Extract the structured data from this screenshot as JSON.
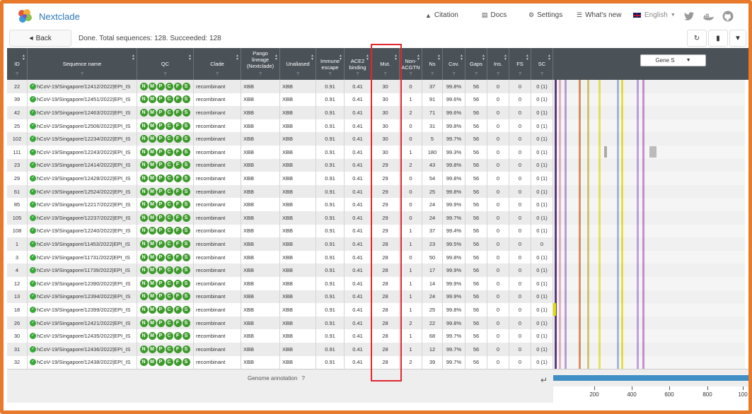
{
  "nav": {
    "brand": "Nextclade",
    "citation": "Citation",
    "docs": "Docs",
    "settings": "Settings",
    "whats_new": "What's new",
    "language": "English"
  },
  "toolbar": {
    "back_label": "Back",
    "status": "Done. Total sequences: 128. Succeeded: 128"
  },
  "table": {
    "headers": {
      "id": "ID",
      "seq_name": "Sequence name",
      "qc": "QC",
      "clade": "Clade",
      "pango_1": "Pango",
      "pango_2": "lineage",
      "pango_3": "(Nextclade)",
      "unaliased": "Unaliased",
      "immune_1": "Immune",
      "immune_2": "escape",
      "ace2_1": "ACE2",
      "ace2_2": "binding",
      "mut": "Mut.",
      "nonacgtn_1": "Non-",
      "nonacgtn_2": "ACGTN",
      "ns": "Ns",
      "cov": "Cov.",
      "gaps": "Gaps",
      "ins": "Ins.",
      "fs": "FS",
      "sc": "SC",
      "help": "?"
    },
    "qc_letters": [
      "N",
      "M",
      "P",
      "C",
      "F",
      "S"
    ],
    "gene_select": "Gene S",
    "rows": [
      {
        "id": "22",
        "name": "hCoV-19/Singapore/12412/2022|EPI_IS",
        "clade": "recombinant",
        "pango": "XBB",
        "unaliased": "XBB",
        "immune": "0.91",
        "ace2": "0.41",
        "mut": "30",
        "nonacgtn": "0",
        "ns": "37",
        "cov": "99.8%",
        "gaps": "56",
        "ins": "0",
        "fs": "0",
        "sc": "0 (1)"
      },
      {
        "id": "39",
        "name": "hCoV-19/Singapore/12451/2022|EPI_IS",
        "clade": "recombinant",
        "pango": "XBB",
        "unaliased": "XBB",
        "immune": "0.91",
        "ace2": "0.41",
        "mut": "30",
        "nonacgtn": "1",
        "ns": "91",
        "cov": "99.6%",
        "gaps": "56",
        "ins": "0",
        "fs": "0",
        "sc": "0 (1)"
      },
      {
        "id": "42",
        "name": "hCoV-19/Singapore/12463/2022|EPI_IS",
        "clade": "recombinant",
        "pango": "XBB",
        "unaliased": "XBB",
        "immune": "0.91",
        "ace2": "0.41",
        "mut": "30",
        "nonacgtn": "2",
        "ns": "71",
        "cov": "99.6%",
        "gaps": "56",
        "ins": "0",
        "fs": "0",
        "sc": "0 (1)"
      },
      {
        "id": "25",
        "name": "hCoV-19/Singapore/12506/2022|EPI_IS",
        "clade": "recombinant",
        "pango": "XBB",
        "unaliased": "XBB",
        "immune": "0.91",
        "ace2": "0.41",
        "mut": "30",
        "nonacgtn": "0",
        "ns": "31",
        "cov": "99.8%",
        "gaps": "56",
        "ins": "0",
        "fs": "0",
        "sc": "0 (1)"
      },
      {
        "id": "102",
        "name": "hCoV-19/Singapore/12234/2022|EPI_IS",
        "clade": "recombinant",
        "pango": "XBB",
        "unaliased": "XBB",
        "immune": "0.91",
        "ace2": "0.41",
        "mut": "30",
        "nonacgtn": "0",
        "ns": "5",
        "cov": "99.7%",
        "gaps": "56",
        "ins": "0",
        "fs": "0",
        "sc": "0 (1)"
      },
      {
        "id": "111",
        "name": "hCoV-19/Singapore/12243/2022|EPI_IS",
        "clade": "recombinant",
        "pango": "XBB",
        "unaliased": "XBB",
        "immune": "0.91",
        "ace2": "0.41",
        "mut": "30",
        "nonacgtn": "1",
        "ns": "180",
        "cov": "99.3%",
        "gaps": "56",
        "ins": "0",
        "fs": "0",
        "sc": "0 (1)"
      },
      {
        "id": "23",
        "name": "hCoV-19/Singapore/12414/2022|EPI_IS",
        "clade": "recombinant",
        "pango": "XBB",
        "unaliased": "XBB",
        "immune": "0.91",
        "ace2": "0.41",
        "mut": "29",
        "nonacgtn": "2",
        "ns": "43",
        "cov": "99.8%",
        "gaps": "56",
        "ins": "0",
        "fs": "0",
        "sc": "0 (1)"
      },
      {
        "id": "29",
        "name": "hCoV-19/Singapore/12428/2022|EPI_IS",
        "clade": "recombinant",
        "pango": "XBB",
        "unaliased": "XBB",
        "immune": "0.91",
        "ace2": "0.41",
        "mut": "29",
        "nonacgtn": "0",
        "ns": "54",
        "cov": "99.8%",
        "gaps": "56",
        "ins": "0",
        "fs": "0",
        "sc": "0 (1)"
      },
      {
        "id": "61",
        "name": "hCoV-19/Singapore/12524/2022|EPI_IS",
        "clade": "recombinant",
        "pango": "XBB",
        "unaliased": "XBB",
        "immune": "0.91",
        "ace2": "0.41",
        "mut": "29",
        "nonacgtn": "0",
        "ns": "25",
        "cov": "99.8%",
        "gaps": "56",
        "ins": "0",
        "fs": "0",
        "sc": "0 (1)"
      },
      {
        "id": "85",
        "name": "hCoV-19/Singapore/12217/2022|EPI_IS",
        "clade": "recombinant",
        "pango": "XBB",
        "unaliased": "XBB",
        "immune": "0.91",
        "ace2": "0.41",
        "mut": "29",
        "nonacgtn": "0",
        "ns": "24",
        "cov": "99.9%",
        "gaps": "56",
        "ins": "0",
        "fs": "0",
        "sc": "0 (1)"
      },
      {
        "id": "105",
        "name": "hCoV-19/Singapore/12237/2022|EPI_IS",
        "clade": "recombinant",
        "pango": "XBB",
        "unaliased": "XBB",
        "immune": "0.91",
        "ace2": "0.41",
        "mut": "29",
        "nonacgtn": "0",
        "ns": "24",
        "cov": "99.7%",
        "gaps": "56",
        "ins": "0",
        "fs": "0",
        "sc": "0 (1)"
      },
      {
        "id": "108",
        "name": "hCoV-19/Singapore/12240/2022|EPI_IS",
        "clade": "recombinant",
        "pango": "XBB",
        "unaliased": "XBB",
        "immune": "0.91",
        "ace2": "0.41",
        "mut": "29",
        "nonacgtn": "1",
        "ns": "37",
        "cov": "99.4%",
        "gaps": "56",
        "ins": "0",
        "fs": "0",
        "sc": "0 (1)"
      },
      {
        "id": "1",
        "name": "hCoV-19/Singapore/11453/2022|EPI_IS",
        "clade": "recombinant",
        "pango": "XBB",
        "unaliased": "XBB",
        "immune": "0.91",
        "ace2": "0.41",
        "mut": "28",
        "nonacgtn": "1",
        "ns": "23",
        "cov": "99.5%",
        "gaps": "56",
        "ins": "0",
        "fs": "0",
        "sc": "0"
      },
      {
        "id": "3",
        "name": "hCoV-19/Singapore/11731/2022|EPI_IS",
        "clade": "recombinant",
        "pango": "XBB",
        "unaliased": "XBB",
        "immune": "0.91",
        "ace2": "0.41",
        "mut": "28",
        "nonacgtn": "0",
        "ns": "50",
        "cov": "99.8%",
        "gaps": "56",
        "ins": "0",
        "fs": "0",
        "sc": "0 (1)"
      },
      {
        "id": "4",
        "name": "hCoV-19/Singapore/11739/2022|EPI_IS",
        "clade": "recombinant",
        "pango": "XBB",
        "unaliased": "XBB",
        "immune": "0.91",
        "ace2": "0.41",
        "mut": "28",
        "nonacgtn": "1",
        "ns": "17",
        "cov": "99.9%",
        "gaps": "56",
        "ins": "0",
        "fs": "0",
        "sc": "0 (1)"
      },
      {
        "id": "12",
        "name": "hCoV-19/Singapore/12390/2022|EPI_IS",
        "clade": "recombinant",
        "pango": "XBB",
        "unaliased": "XBB",
        "immune": "0.91",
        "ace2": "0.41",
        "mut": "28",
        "nonacgtn": "1",
        "ns": "14",
        "cov": "99.9%",
        "gaps": "56",
        "ins": "0",
        "fs": "0",
        "sc": "0 (1)"
      },
      {
        "id": "13",
        "name": "hCoV-19/Singapore/12394/2022|EPI_IS",
        "clade": "recombinant",
        "pango": "XBB",
        "unaliased": "XBB",
        "immune": "0.91",
        "ace2": "0.41",
        "mut": "28",
        "nonacgtn": "1",
        "ns": "24",
        "cov": "99.9%",
        "gaps": "56",
        "ins": "0",
        "fs": "0",
        "sc": "0 (1)"
      },
      {
        "id": "18",
        "name": "hCoV-19/Singapore/12399/2022|EPI_IS",
        "clade": "recombinant",
        "pango": "XBB",
        "unaliased": "XBB",
        "immune": "0.91",
        "ace2": "0.41",
        "mut": "28",
        "nonacgtn": "1",
        "ns": "25",
        "cov": "99.8%",
        "gaps": "56",
        "ins": "0",
        "fs": "0",
        "sc": "0 (1)"
      },
      {
        "id": "26",
        "name": "hCoV-19/Singapore/12421/2022|EPI_IS",
        "clade": "recombinant",
        "pango": "XBB",
        "unaliased": "XBB",
        "immune": "0.91",
        "ace2": "0.41",
        "mut": "28",
        "nonacgtn": "2",
        "ns": "22",
        "cov": "99.8%",
        "gaps": "56",
        "ins": "0",
        "fs": "0",
        "sc": "0 (1)"
      },
      {
        "id": "30",
        "name": "hCoV-19/Singapore/12435/2022|EPI_IS",
        "clade": "recombinant",
        "pango": "XBB",
        "unaliased": "XBB",
        "immune": "0.91",
        "ace2": "0.41",
        "mut": "28",
        "nonacgtn": "1",
        "ns": "68",
        "cov": "99.7%",
        "gaps": "56",
        "ins": "0",
        "fs": "0",
        "sc": "0 (1)"
      },
      {
        "id": "31",
        "name": "hCoV-19/Singapore/12436/2022|EPI_IS",
        "clade": "recombinant",
        "pango": "XBB",
        "unaliased": "XBB",
        "immune": "0.91",
        "ace2": "0.41",
        "mut": "28",
        "nonacgtn": "1",
        "ns": "12",
        "cov": "99.7%",
        "gaps": "56",
        "ins": "0",
        "fs": "0",
        "sc": "0 (1)"
      },
      {
        "id": "32",
        "name": "hCoV-19/Singapore/12438/2022|EPI_IS",
        "clade": "recombinant",
        "pango": "XBB",
        "unaliased": "XBB",
        "immune": "0.91",
        "ace2": "0.41",
        "mut": "28",
        "nonacgtn": "2",
        "ns": "39",
        "cov": "99.7%",
        "gaps": "56",
        "ins": "0",
        "fs": "0",
        "sc": "0 (1)"
      }
    ]
  },
  "genome_map": {
    "bar_colors": [
      "#5a3f7a",
      "#e8b0c8",
      "#b8a0d0",
      "#d89060",
      "#d0c870",
      "#e8e060",
      "#a8b8d8",
      "#e8e040",
      "#c0a0e0",
      "#c890c8"
    ]
  },
  "footer": {
    "genome_annotation": "Genome annotation",
    "axis_ticks": [
      "200",
      "400",
      "600",
      "800",
      "100"
    ]
  },
  "colors": {
    "accent": "#e87a2c",
    "header_bg": "#4a5157",
    "qc_good": "#3e9a2c",
    "highlight": "#e0282e",
    "axis_bar": "#3f8fc4"
  }
}
